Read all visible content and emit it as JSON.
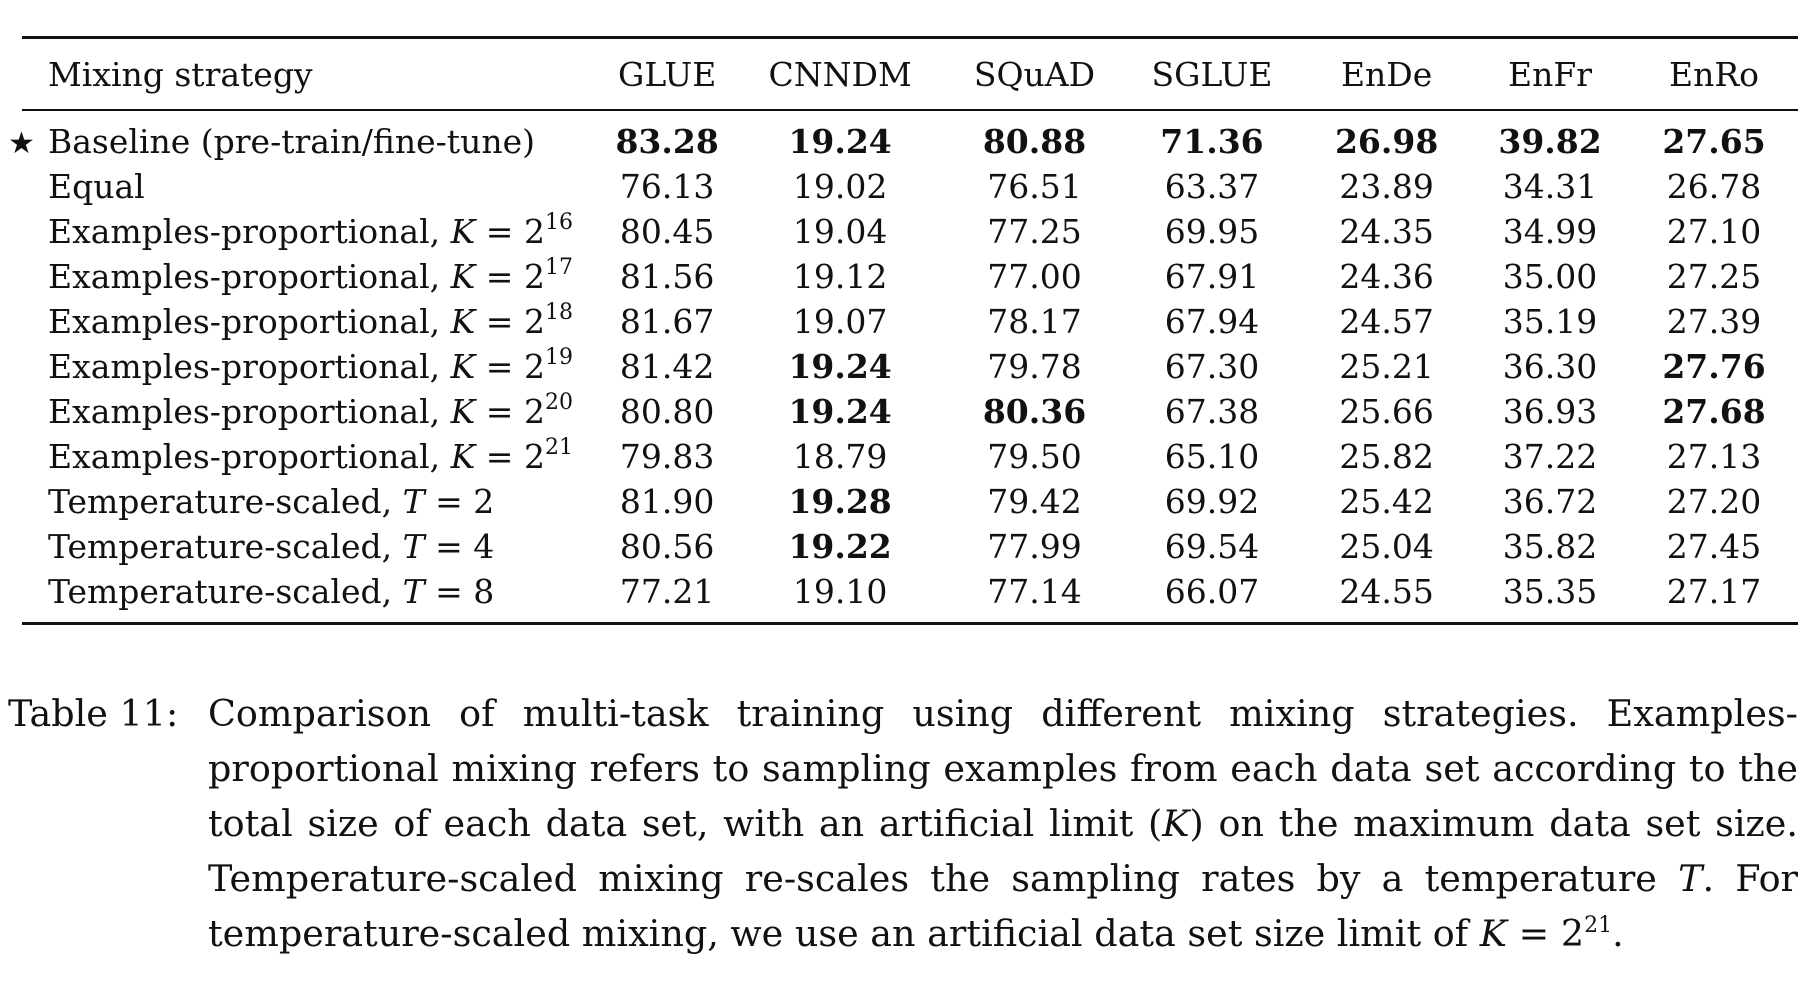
{
  "table": {
    "columns": [
      "Mixing strategy",
      "GLUE",
      "CNNDM",
      "SQuAD",
      "SGLUE",
      "EnDe",
      "EnFr",
      "EnRo"
    ],
    "rows": [
      {
        "marker": "★",
        "label": "Baseline (pre-train/fine-tune)",
        "values": [
          "83.28",
          "19.24",
          "80.88",
          "71.36",
          "26.98",
          "39.82",
          "27.65"
        ],
        "bold": [
          true,
          true,
          true,
          true,
          true,
          true,
          true
        ]
      },
      {
        "label": "Equal",
        "values": [
          "76.13",
          "19.02",
          "76.51",
          "63.37",
          "23.89",
          "34.31",
          "26.78"
        ],
        "bold": [
          false,
          false,
          false,
          false,
          false,
          false,
          false
        ]
      },
      {
        "label": "Examples-proportional,",
        "math_var": "K",
        "math_rel": " = 2",
        "exp": "16",
        "values": [
          "80.45",
          "19.04",
          "77.25",
          "69.95",
          "24.35",
          "34.99",
          "27.10"
        ],
        "bold": [
          false,
          false,
          false,
          false,
          false,
          false,
          false
        ]
      },
      {
        "label": "Examples-proportional,",
        "math_var": "K",
        "math_rel": " = 2",
        "exp": "17",
        "values": [
          "81.56",
          "19.12",
          "77.00",
          "67.91",
          "24.36",
          "35.00",
          "27.25"
        ],
        "bold": [
          false,
          false,
          false,
          false,
          false,
          false,
          false
        ]
      },
      {
        "label": "Examples-proportional,",
        "math_var": "K",
        "math_rel": " = 2",
        "exp": "18",
        "values": [
          "81.67",
          "19.07",
          "78.17",
          "67.94",
          "24.57",
          "35.19",
          "27.39"
        ],
        "bold": [
          false,
          false,
          false,
          false,
          false,
          false,
          false
        ]
      },
      {
        "label": "Examples-proportional,",
        "math_var": "K",
        "math_rel": " = 2",
        "exp": "19",
        "values": [
          "81.42",
          "19.24",
          "79.78",
          "67.30",
          "25.21",
          "36.30",
          "27.76"
        ],
        "bold": [
          false,
          true,
          false,
          false,
          false,
          false,
          true
        ]
      },
      {
        "label": "Examples-proportional,",
        "math_var": "K",
        "math_rel": " = 2",
        "exp": "20",
        "values": [
          "80.80",
          "19.24",
          "80.36",
          "67.38",
          "25.66",
          "36.93",
          "27.68"
        ],
        "bold": [
          false,
          true,
          true,
          false,
          false,
          false,
          true
        ]
      },
      {
        "label": "Examples-proportional,",
        "math_var": "K",
        "math_rel": " = 2",
        "exp": "21",
        "values": [
          "79.83",
          "18.79",
          "79.50",
          "65.10",
          "25.82",
          "37.22",
          "27.13"
        ],
        "bold": [
          false,
          false,
          false,
          false,
          false,
          false,
          false
        ]
      },
      {
        "label": "Temperature-scaled,",
        "math_var": "T",
        "math_rel": " = 2",
        "values": [
          "81.90",
          "19.28",
          "79.42",
          "69.92",
          "25.42",
          "36.72",
          "27.20"
        ],
        "bold": [
          false,
          true,
          false,
          false,
          false,
          false,
          false
        ]
      },
      {
        "label": "Temperature-scaled,",
        "math_var": "T",
        "math_rel": " = 4",
        "values": [
          "80.56",
          "19.22",
          "77.99",
          "69.54",
          "25.04",
          "35.82",
          "27.45"
        ],
        "bold": [
          false,
          true,
          false,
          false,
          false,
          false,
          false
        ]
      },
      {
        "label": "Temperature-scaled,",
        "math_var": "T",
        "math_rel": " = 8",
        "values": [
          "77.21",
          "19.10",
          "77.14",
          "66.07",
          "24.55",
          "35.35",
          "27.17"
        ],
        "bold": [
          false,
          false,
          false,
          false,
          false,
          false,
          false
        ]
      }
    ]
  },
  "caption": {
    "label": "Table 11:",
    "parts": [
      "Comparison of multi-task training using different mixing strategies. Examples-proportional mixing refers to sampling examples from each data set according to the total size of each data set, with an artificial limit (",
      "K",
      ") on the maximum data set size. Temperature-scaled mixing re-scales the sampling rates by a temperature ",
      "T",
      ". For temperature-scaled mixing, we use an artificial data set size limit of ",
      "K",
      " = 2",
      "21",
      "."
    ]
  }
}
